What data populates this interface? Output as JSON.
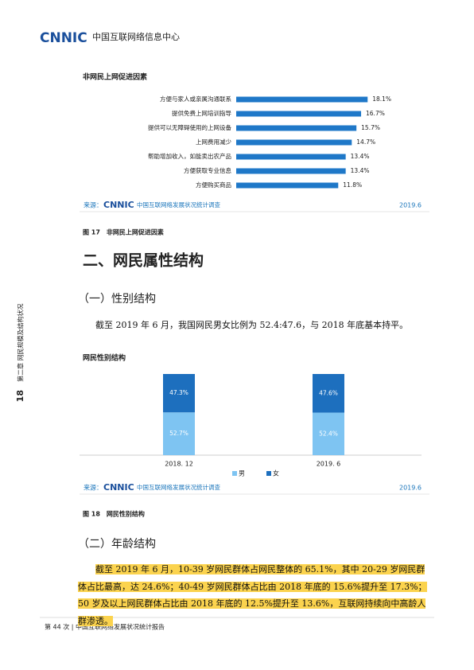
{
  "header": {
    "logo": "CNNIC",
    "org": "中国互联网络信息中心"
  },
  "sidebar": {
    "page": "18",
    "chapter": "第二章 网民规模及结构状况"
  },
  "chart_data": [
    {
      "type": "hbar",
      "title": "非网民上网促进因素",
      "categories": [
        "方便与家人或亲属沟通联系",
        "提供免费上网培训指导",
        "提供可以无障碍使用的上网设备",
        "上网费用减少",
        "帮助增加收入，如能卖出农产品",
        "方便获取专业信息",
        "方便购买商品"
      ],
      "values": [
        18.1,
        16.7,
        15.7,
        14.7,
        13.4,
        13.4,
        11.8
      ],
      "value_labels": [
        "18.1%",
        "16.7%",
        "15.7%",
        "14.7%",
        "13.4%",
        "13.4%",
        "11.8%"
      ],
      "color": "#1f78c8",
      "source": {
        "label": "来源：",
        "logo": "CNNIC",
        "name": "中国互联网络发展状况统计调查",
        "date": "2019.6"
      }
    },
    {
      "type": "stacked",
      "title": "网民性别结构",
      "categories": [
        "2018. 12",
        "2019. 6"
      ],
      "series": [
        {
          "name": "男",
          "color": "#7ec4f2",
          "values": [
            52.7,
            52.4
          ],
          "value_labels": [
            "52.7%",
            "52.4%"
          ]
        },
        {
          "name": "女",
          "color": "#1d6fbe",
          "values": [
            47.3,
            47.6
          ],
          "value_labels": [
            "47.3%",
            "47.6%"
          ]
        }
      ],
      "source": {
        "label": "来源：",
        "logo": "CNNIC",
        "name": "中国互联网络发展状况统计调查",
        "date": "2019.6"
      }
    }
  ],
  "captions": [
    "图 17　非网民上网促进因素",
    "图 18　网民性别结构"
  ],
  "headings": [
    "二、网民属性结构",
    "（一）性别结构",
    "（二）年龄结构"
  ],
  "paragraphs": [
    "截至 2019 年 6 月，我国网民男女比例为 52.4:47.6，与 2018 年底基本持平。",
    "截至 2019 年 6 月，10-39 岁网民群体占网民整体的 65.1%，其中 20-29 岁网民群体占比最高，达 24.6%；40-49 岁网民群体占比由 2018 年底的 15.6%提升至 17.3%；50 岁及以上网民群体占比由 2018 年底的 12.5%提升至 13.6%，互联网持续向中高龄人群渗透。"
  ],
  "footer": "第 44 次 | 中国互联网络发展状况统计报告"
}
